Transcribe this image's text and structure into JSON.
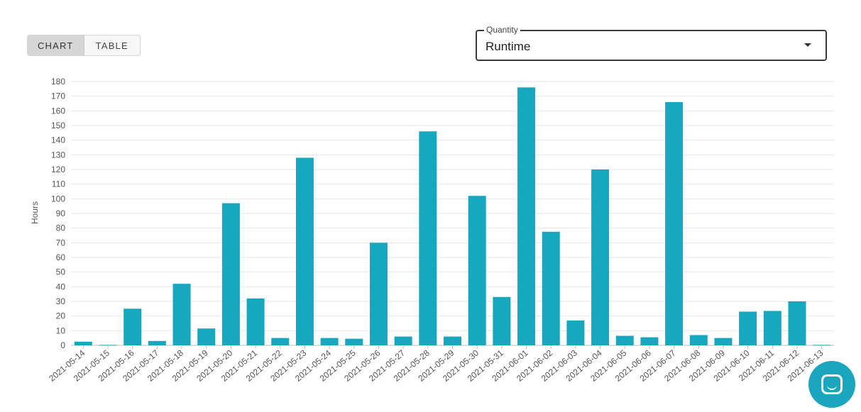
{
  "view_toggle": {
    "chart_label": "CHART",
    "table_label": "TABLE",
    "active": "chart"
  },
  "quantity_select": {
    "label": "Quantity",
    "value": "Runtime"
  },
  "chat_button": {
    "icon": "chat-bubble-icon"
  },
  "colors": {
    "bar": "#17a7bf",
    "grid": "#e6e6e6",
    "fab": "#1aa6bd"
  },
  "chart_data": {
    "type": "bar",
    "ylabel": "Hours",
    "xlabel": "",
    "ylim": [
      0,
      180
    ],
    "yticks": [
      0,
      10,
      20,
      30,
      40,
      50,
      60,
      70,
      80,
      90,
      100,
      110,
      120,
      130,
      140,
      150,
      160,
      170,
      180
    ],
    "grid": true,
    "categories": [
      "2021-05-14",
      "2021-05-15",
      "2021-05-16",
      "2021-05-17",
      "2021-05-18",
      "2021-05-19",
      "2021-05-20",
      "2021-05-21",
      "2021-05-22",
      "2021-05-23",
      "2021-05-24",
      "2021-05-25",
      "2021-05-26",
      "2021-05-27",
      "2021-05-28",
      "2021-05-29",
      "2021-05-30",
      "2021-05-31",
      "2021-06-01",
      "2021-06-02",
      "2021-06-03",
      "2021-06-04",
      "2021-06-05",
      "2021-06-06",
      "2021-06-07",
      "2021-06-08",
      "2021-06-09",
      "2021-06-10",
      "2021-06-11",
      "2021-06-12",
      "2021-06-13"
    ],
    "values": [
      2.5,
      0.3,
      25,
      3,
      42,
      11.5,
      97,
      32,
      5,
      128,
      5,
      4.5,
      70,
      6,
      146,
      6,
      102,
      33,
      176,
      77.5,
      17,
      120,
      6.5,
      5.5,
      166,
      7,
      5,
      23,
      23.5,
      30,
      0.3
    ]
  }
}
